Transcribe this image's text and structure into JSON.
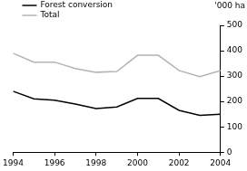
{
  "chart_data": {
    "type": "line",
    "y_label": "'000 ha",
    "x": [
      1994,
      1995,
      1996,
      1997,
      1998,
      1999,
      2000,
      2001,
      2002,
      2003,
      2004
    ],
    "series": [
      {
        "name": "Forest conversion",
        "color": "#000000",
        "values": [
          240,
          210,
          205,
          190,
          172,
          178,
          212,
          212,
          165,
          145,
          150
        ]
      },
      {
        "name": "Total",
        "color": "#b3b3b3",
        "values": [
          390,
          355,
          355,
          330,
          315,
          318,
          382,
          382,
          322,
          298,
          322
        ]
      }
    ],
    "xlim": [
      1994,
      2004
    ],
    "xticks": [
      1994,
      1996,
      1998,
      2000,
      2002,
      2004
    ],
    "ylim": [
      0,
      500
    ],
    "yticks": [
      0,
      100,
      200,
      300,
      400,
      500
    ],
    "grid": false,
    "legend": "top-left"
  }
}
